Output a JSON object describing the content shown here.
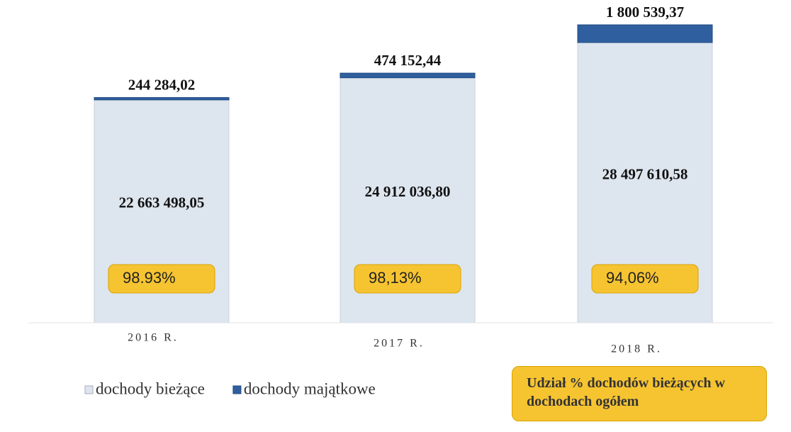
{
  "chart_data": {
    "type": "stacked_bar",
    "categories": [
      "2016 R.",
      "2017 R.",
      "2018 R."
    ],
    "series": [
      {
        "name": "dochody bieżące",
        "color": "#dde5ee",
        "values": [
          22663498.05,
          24912036.8,
          28497610.58
        ],
        "value_labels": [
          "22 663 498,05",
          "24 912 036,80",
          "28 497 610,58"
        ]
      },
      {
        "name": "dochody majątkowe",
        "color": "#2f5f9e",
        "values": [
          244284.02,
          474152.44,
          1800539.37
        ],
        "value_labels": [
          "244 284,02",
          "474 152,44",
          "1 800 539,37"
        ]
      }
    ],
    "share": {
      "name": "Udział % dochodów bieżących w dochodach ogółem",
      "color": "#f6c431",
      "values": [
        98.93,
        98.13,
        94.06
      ],
      "value_labels": [
        "98.93%",
        "98,13%",
        "94,06%"
      ]
    }
  }
}
